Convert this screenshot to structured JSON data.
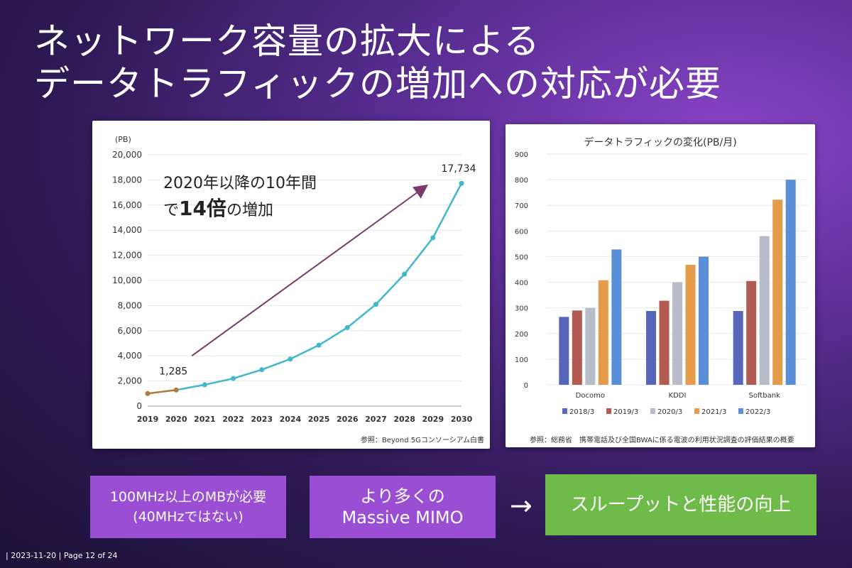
{
  "slide": {
    "title_line1": "ネットワーク容量の拡大による",
    "title_line2": "データトラフィックの増加への対応が必要",
    "footer": "| 2023-11-20 | Page 12 of 24",
    "arrow": "→"
  },
  "left_annotation": {
    "line1": "2020年以降の10年間",
    "line2_pre": "で",
    "line2_bold": "14倍",
    "line2_post": "の増加"
  },
  "boxes": {
    "box1_line1": "100MHz以上のMBが必要",
    "box1_line2": "(40MHzではない)",
    "box2_line1": "より多くの",
    "box2_line2": "Massive MIMO",
    "box3": "スループットと性能の向上"
  },
  "sources": {
    "left": "参照：Beyond 5Gコンソーシアム白書",
    "right": "参照：総務省　携帯電話及び全国BWAに係る電波の利用状況調査の評価結果の概要"
  },
  "chart_data": [
    {
      "type": "line",
      "title": "",
      "ylabel": "(PB)",
      "xlabel": "",
      "x": [
        "2019",
        "2020",
        "2021",
        "2022",
        "2023",
        "2024",
        "2025",
        "2026",
        "2027",
        "2028",
        "2029",
        "2030"
      ],
      "series": [
        {
          "values": [
            1000,
            1285,
            1700,
            2200,
            2900,
            3750,
            4850,
            6250,
            8100,
            10500,
            13400,
            17734
          ],
          "color": "#3fb8c9",
          "past_color": "#b07a3a"
        }
      ],
      "ylim": [
        0,
        20000
      ],
      "yticks": [
        "0",
        "2,000",
        "4,000",
        "6,000",
        "8,000",
        "10,000",
        "12,000",
        "14,000",
        "16,000",
        "18,000",
        "20,000"
      ],
      "data_labels": {
        "start": "1,285",
        "end": "17,734"
      },
      "grid": true
    },
    {
      "type": "bar",
      "title": "データトラフィックの変化(PB/月)",
      "categories": [
        "Docomo",
        "KDDI",
        "Softbank"
      ],
      "series": [
        {
          "name": "2018/3",
          "values": [
            265,
            288,
            288
          ],
          "color": "#5566bb"
        },
        {
          "name": "2019/3",
          "values": [
            290,
            328,
            405
          ],
          "color": "#b35a52"
        },
        {
          "name": "2020/3",
          "values": [
            300,
            400,
            580
          ],
          "color": "#b8bcc8"
        },
        {
          "name": "2021/3",
          "values": [
            408,
            468,
            722
          ],
          "color": "#e49b4a"
        },
        {
          "name": "2022/3",
          "values": [
            528,
            500,
            800
          ],
          "color": "#5a8ed6"
        }
      ],
      "ylim": [
        0,
        900
      ],
      "yticks": [
        "0",
        "100",
        "200",
        "300",
        "400",
        "500",
        "600",
        "700",
        "800",
        "900"
      ],
      "grid": true,
      "legend_position": "bottom"
    }
  ]
}
